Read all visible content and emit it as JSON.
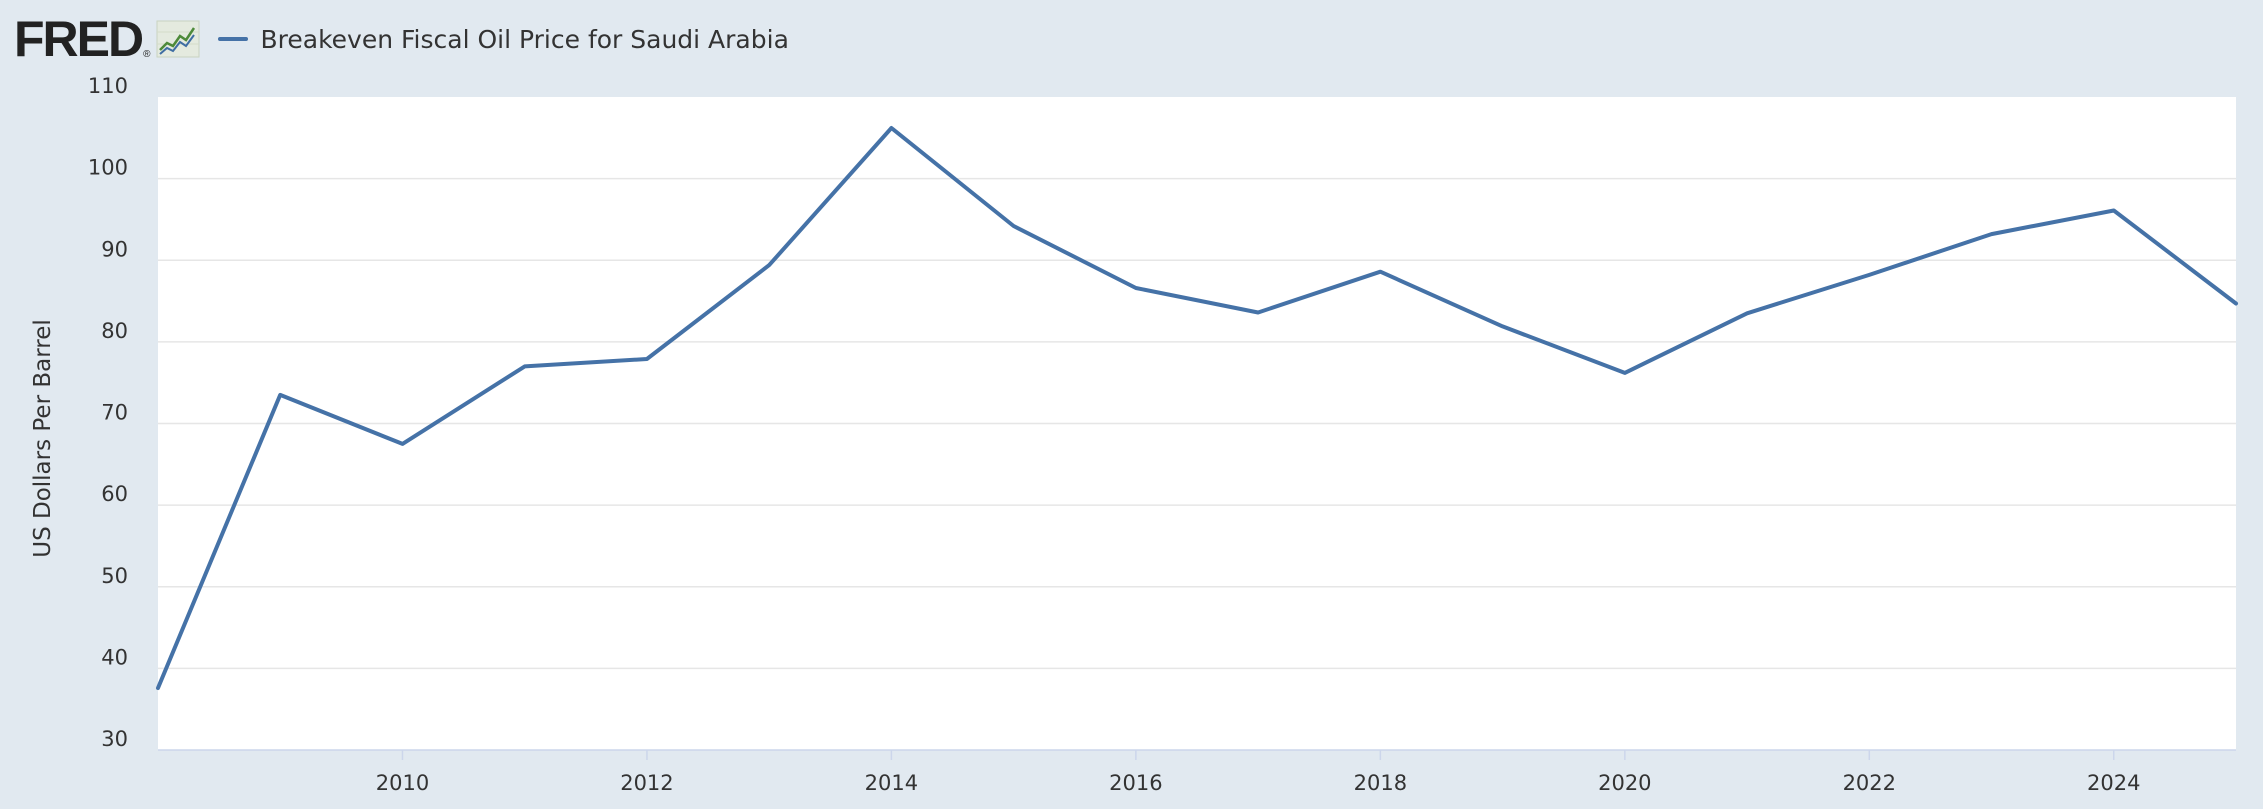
{
  "header": {
    "logo_text": "FRED",
    "logo_reg": "®",
    "legend_label": "Breakeven Fiscal Oil Price for Saudi Arabia"
  },
  "colors": {
    "background": "#e1e9f0",
    "plot_background": "#ffffff",
    "series": "#4572a7",
    "grid": "#e6e6e6"
  },
  "chart_data": {
    "type": "line",
    "title": "",
    "xlabel": "",
    "ylabel": "US Dollars Per Barrel",
    "xlim": [
      2008,
      2025
    ],
    "ylim": [
      30,
      110
    ],
    "yticks": [
      30,
      40,
      50,
      60,
      70,
      80,
      90,
      100,
      110
    ],
    "xticks": [
      2010,
      2012,
      2014,
      2016,
      2018,
      2020,
      2022,
      2024
    ],
    "grid": true,
    "legend_placement": "top-left",
    "series": [
      {
        "name": "Breakeven Fiscal Oil Price for Saudi Arabia",
        "x": [
          2008,
          2009,
          2010,
          2011,
          2012,
          2013,
          2014,
          2015,
          2016,
          2017,
          2018,
          2019,
          2020,
          2021,
          2022,
          2023,
          2024,
          2025
        ],
        "values": [
          37.6,
          73.5,
          67.5,
          77.0,
          77.9,
          89.4,
          106.2,
          94.2,
          86.6,
          83.6,
          88.6,
          81.9,
          76.2,
          83.5,
          88.2,
          93.2,
          96.1,
          84.7
        ]
      }
    ]
  }
}
